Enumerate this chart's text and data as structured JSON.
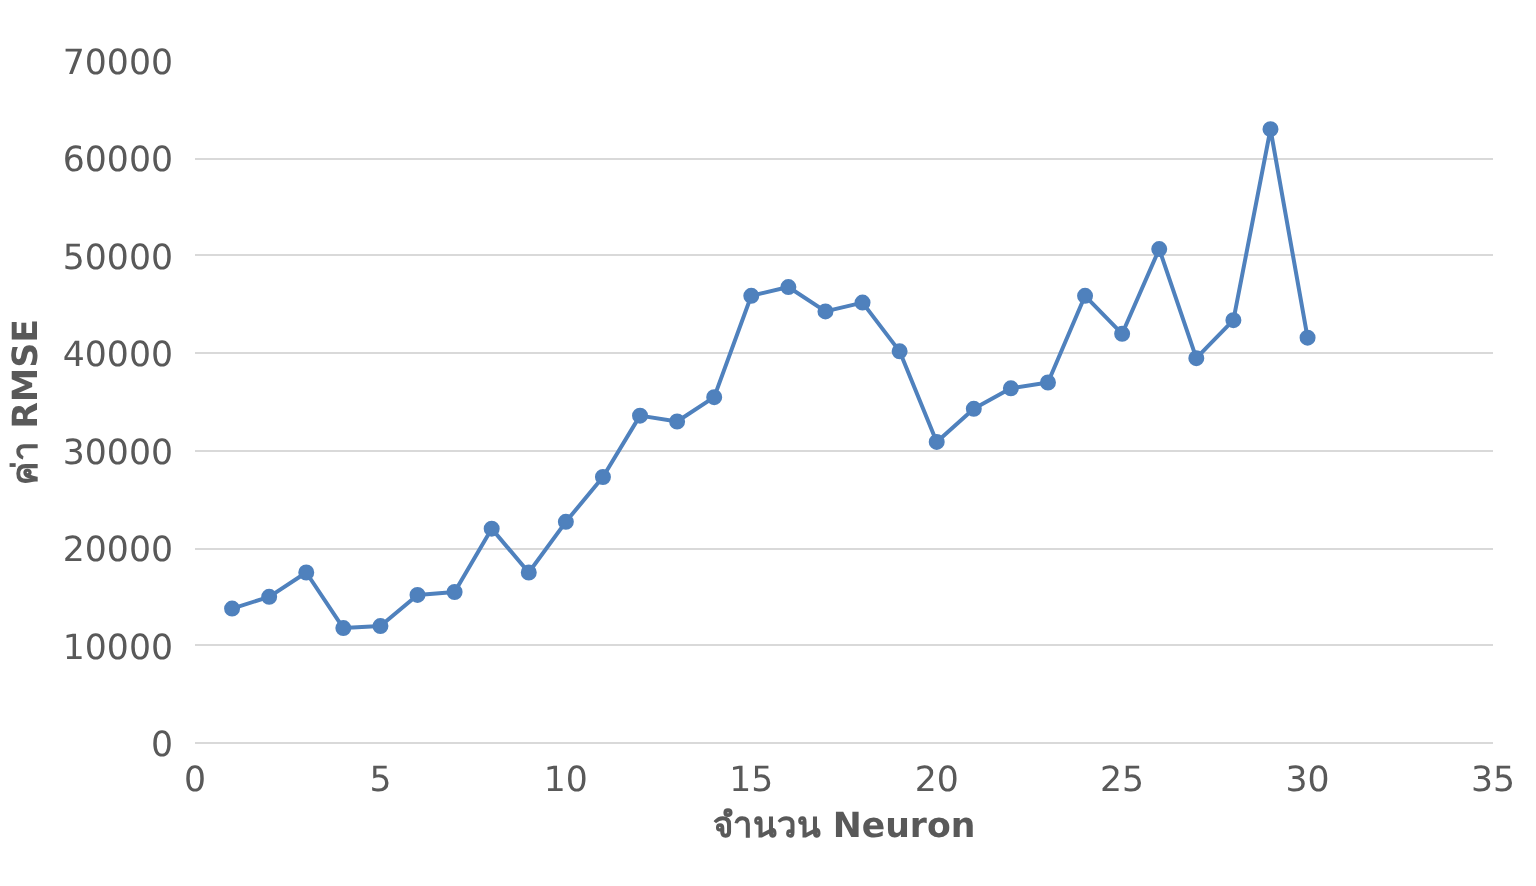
{
  "chart_data": {
    "type": "line",
    "xlabel": "จำนวน Neuron",
    "ylabel": "ค่า RMSE",
    "x": [
      1,
      2,
      3,
      4,
      5,
      6,
      7,
      8,
      9,
      10,
      11,
      12,
      13,
      14,
      15,
      16,
      17,
      18,
      19,
      20,
      21,
      22,
      23,
      24,
      25,
      26,
      27,
      28,
      29,
      30
    ],
    "series": [
      {
        "color": "#4f81bd",
        "values": [
          13800,
          15000,
          17500,
          11800,
          12000,
          15200,
          15500,
          22000,
          17500,
          22700,
          27300,
          33600,
          33000,
          35500,
          45900,
          46800,
          44300,
          45200,
          40200,
          30900,
          34300,
          36400,
          37000,
          45900,
          42000,
          50700,
          39500,
          43400,
          63000,
          41600
        ]
      }
    ],
    "xlim": [
      0,
      35
    ],
    "xticks": [
      0,
      5,
      10,
      15,
      20,
      25,
      30,
      35
    ],
    "ylim": [
      0,
      70000
    ],
    "yticks": [
      0,
      10000,
      20000,
      30000,
      40000,
      50000,
      60000,
      70000
    ],
    "grid": "y",
    "marker": "circle",
    "line_style": "solid"
  }
}
